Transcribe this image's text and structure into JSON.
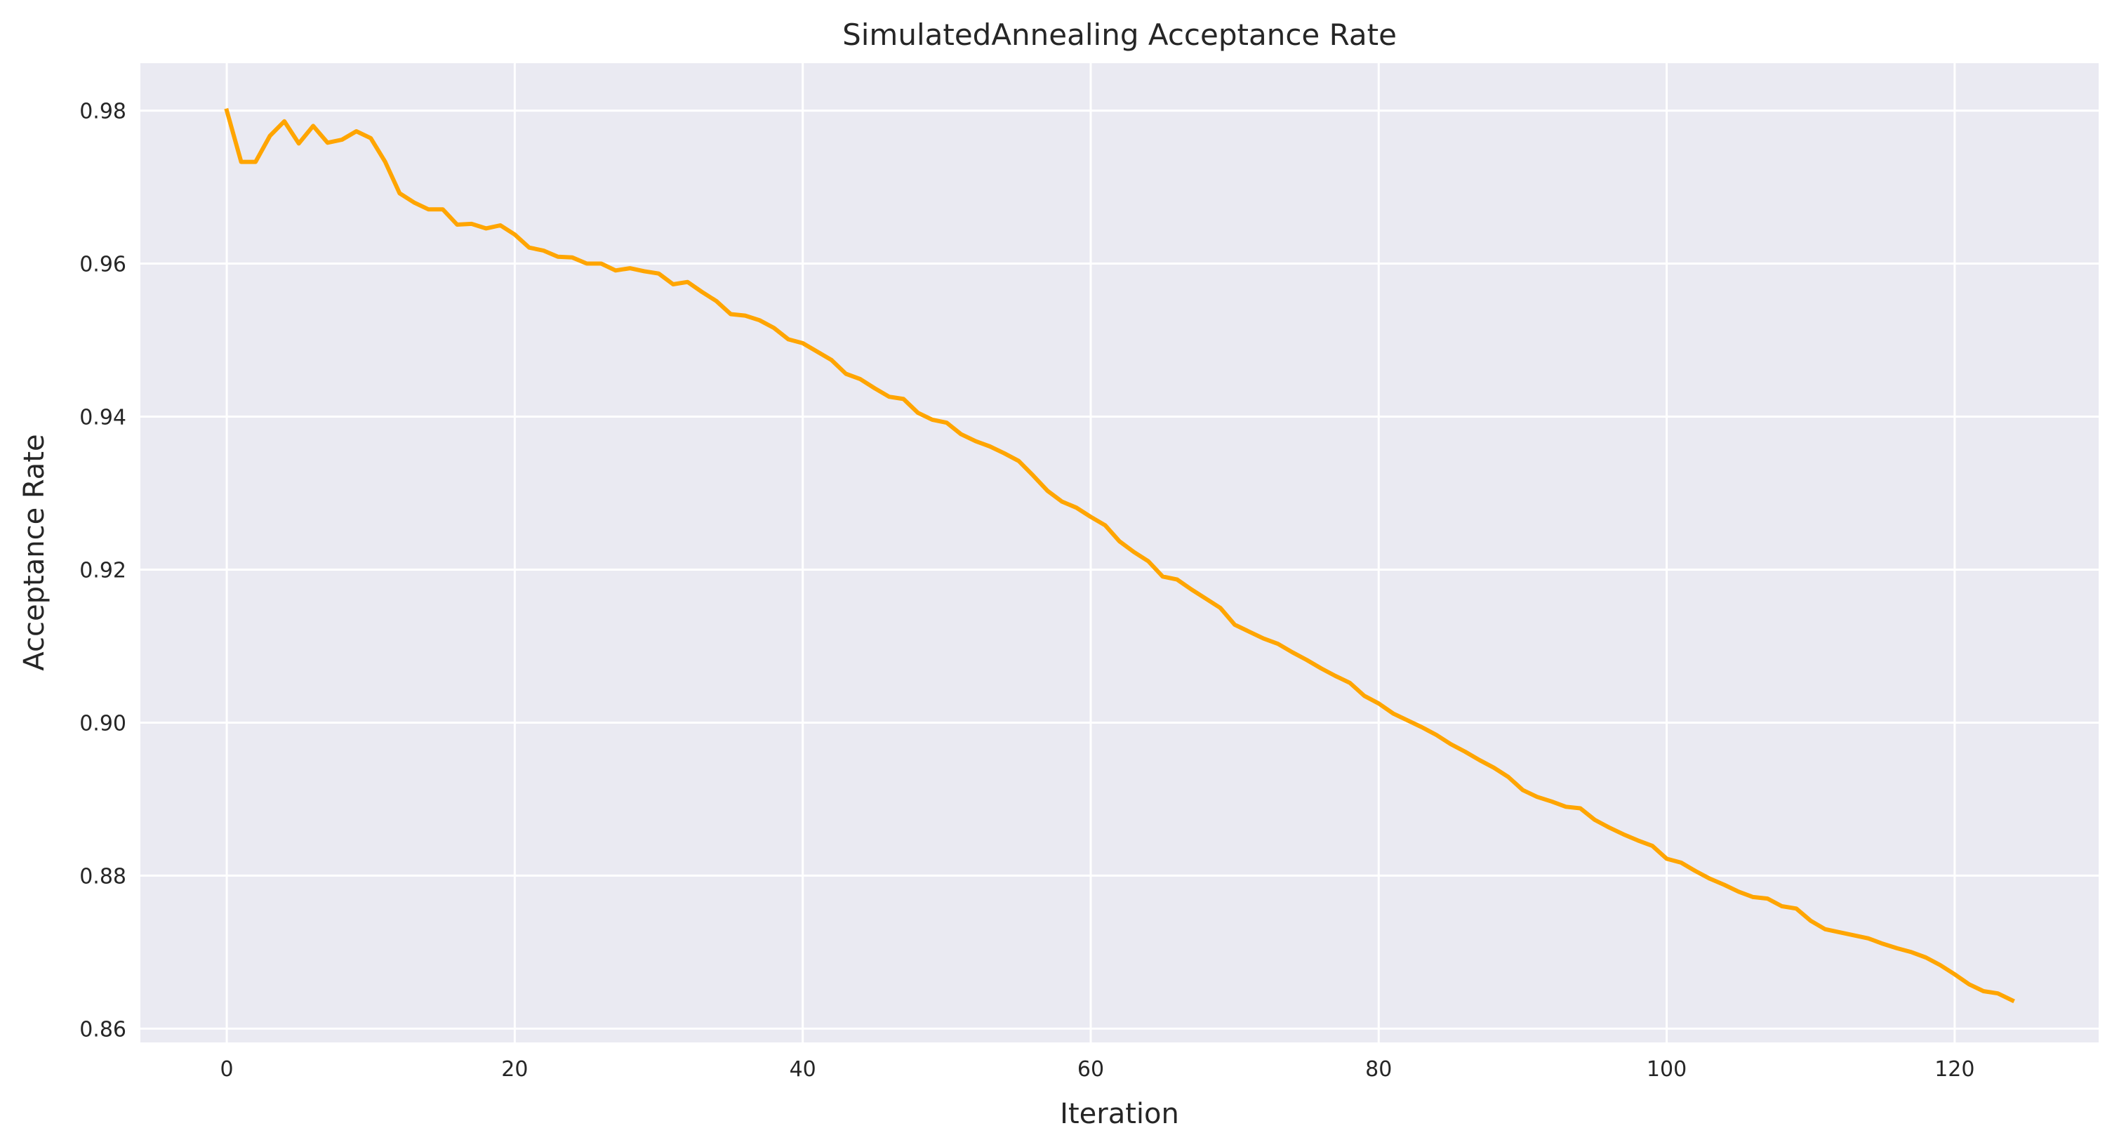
{
  "chart_data": {
    "type": "line",
    "title": "SimulatedAnnealing Acceptance Rate",
    "xlabel": "Iteration",
    "ylabel": "Acceptance Rate",
    "xlim": [
      -6,
      130
    ],
    "ylim": [
      0.8582,
      0.9862
    ],
    "xticks": [
      "0",
      "20",
      "40",
      "60",
      "80",
      "100",
      "120"
    ],
    "yticks": [
      "0.86",
      "0.88",
      "0.90",
      "0.92",
      "0.94",
      "0.96",
      "0.98"
    ],
    "grid": true,
    "line_color": "#ffa500",
    "background_color": "#eaeaf2",
    "series": [
      {
        "x": [
          0,
          1,
          2,
          3,
          4,
          5,
          6,
          7,
          8,
          9,
          10,
          11,
          12,
          13,
          14,
          15,
          16,
          17,
          18,
          19,
          20,
          21,
          22,
          23,
          24,
          25,
          26,
          27,
          28,
          29,
          30,
          31,
          32,
          33,
          34,
          35,
          36,
          37,
          38,
          39,
          40,
          41,
          42,
          43,
          44,
          45,
          46,
          47,
          48,
          49,
          50,
          51,
          52,
          53,
          54,
          55,
          56,
          57,
          58,
          59,
          60,
          61,
          62,
          63,
          64,
          65,
          66,
          67,
          68,
          69,
          70,
          71,
          72,
          73,
          74,
          75,
          76,
          77,
          78,
          79,
          80,
          81,
          82,
          83,
          84,
          85,
          86,
          87,
          88,
          89,
          90,
          91,
          92,
          93,
          94,
          95,
          96,
          97,
          98,
          99,
          100,
          101,
          102,
          103,
          104,
          105,
          106,
          107,
          108,
          109,
          110,
          111,
          112,
          113,
          114,
          115,
          116,
          117,
          118,
          119,
          120,
          121,
          122,
          123,
          124
        ],
        "values": [
          0.98,
          0.9733,
          0.9733,
          0.9767,
          0.9786,
          0.9757,
          0.978,
          0.9758,
          0.9762,
          0.9773,
          0.9764,
          0.9733,
          0.9692,
          0.968,
          0.9671,
          0.9671,
          0.9651,
          0.9652,
          0.9646,
          0.965,
          0.9638,
          0.9621,
          0.9617,
          0.9609,
          0.9608,
          0.96,
          0.96,
          0.9591,
          0.9594,
          0.959,
          0.9587,
          0.9573,
          0.9576,
          0.9563,
          0.9551,
          0.9534,
          0.9532,
          0.9526,
          0.9516,
          0.9501,
          0.9496,
          0.9485,
          0.9474,
          0.9456,
          0.9449,
          0.9437,
          0.9426,
          0.9423,
          0.9405,
          0.9396,
          0.9392,
          0.9377,
          0.9368,
          0.9361,
          0.9352,
          0.9342,
          0.9323,
          0.9303,
          0.9289,
          0.9281,
          0.9269,
          0.9258,
          0.9237,
          0.9223,
          0.9211,
          0.9191,
          0.9187,
          0.9174,
          0.9162,
          0.915,
          0.9128,
          0.9119,
          0.911,
          0.9103,
          0.9092,
          0.9082,
          0.9071,
          0.9061,
          0.9052,
          0.9035,
          0.9025,
          0.9012,
          0.9003,
          0.8994,
          0.8984,
          0.8972,
          0.8962,
          0.8951,
          0.8941,
          0.8929,
          0.8912,
          0.8903,
          0.8897,
          0.889,
          0.8888,
          0.8873,
          0.8863,
          0.8854,
          0.8846,
          0.8839,
          0.8822,
          0.8817,
          0.8806,
          0.8796,
          0.8788,
          0.8779,
          0.8772,
          0.877,
          0.876,
          0.8757,
          0.8741,
          0.873,
          0.8726,
          0.8722,
          0.8718,
          0.8711,
          0.8705,
          0.87,
          0.8693,
          0.8683,
          0.8671,
          0.8658,
          0.8649,
          0.8646,
          0.8637
        ]
      }
    ]
  }
}
